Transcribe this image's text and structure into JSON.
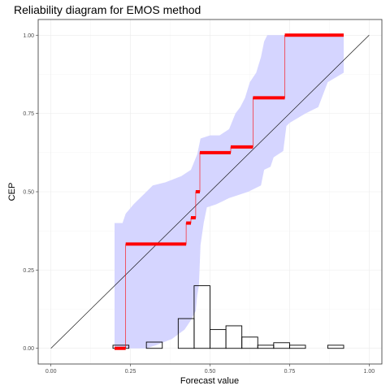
{
  "chart_data": {
    "type": "line",
    "title": "Reliability diagram for EMOS method",
    "xlabel": "Forecast value",
    "ylabel": "CEP",
    "xlim": [
      -0.04,
      1.04
    ],
    "ylim": [
      -0.05,
      1.05
    ],
    "x_ticks": [
      "0.00",
      "0.25",
      "0.50",
      "0.75",
      "1.00"
    ],
    "y_ticks": [
      "0.00",
      "0.25",
      "0.50",
      "0.75",
      "1.00"
    ],
    "grid": true,
    "colors": {
      "step": "#ff0000",
      "band": "#d5d5ff",
      "diagonal": "#000000",
      "histogram": "#000000",
      "panel_border": "#333333"
    },
    "diagonal": [
      [
        0,
        0
      ],
      [
        1,
        1
      ]
    ],
    "cep_steps": [
      {
        "x0": 0.2,
        "x1": 0.235,
        "y": 0.0
      },
      {
        "x0": 0.235,
        "x1": 0.425,
        "y": 0.333
      },
      {
        "x0": 0.425,
        "x1": 0.44,
        "y": 0.4
      },
      {
        "x0": 0.44,
        "x1": 0.455,
        "y": 0.417
      },
      {
        "x0": 0.455,
        "x1": 0.468,
        "y": 0.5
      },
      {
        "x0": 0.468,
        "x1": 0.565,
        "y": 0.625
      },
      {
        "x0": 0.565,
        "x1": 0.635,
        "y": 0.643
      },
      {
        "x0": 0.635,
        "x1": 0.735,
        "y": 0.8
      },
      {
        "x0": 0.735,
        "x1": 0.92,
        "y": 1.0
      }
    ],
    "band_upper": [
      [
        0.2,
        0.4
      ],
      [
        0.225,
        0.4
      ],
      [
        0.235,
        0.43
      ],
      [
        0.26,
        0.46
      ],
      [
        0.3,
        0.5
      ],
      [
        0.32,
        0.52
      ],
      [
        0.36,
        0.53
      ],
      [
        0.41,
        0.55
      ],
      [
        0.44,
        0.57
      ],
      [
        0.46,
        0.62
      ],
      [
        0.47,
        0.67
      ],
      [
        0.5,
        0.68
      ],
      [
        0.53,
        0.68
      ],
      [
        0.56,
        0.7
      ],
      [
        0.58,
        0.75
      ],
      [
        0.595,
        0.77
      ],
      [
        0.61,
        0.8
      ],
      [
        0.625,
        0.85
      ],
      [
        0.645,
        0.88
      ],
      [
        0.66,
        0.93
      ],
      [
        0.67,
        0.98
      ],
      [
        0.68,
        1.0
      ],
      [
        0.92,
        1.0
      ]
    ],
    "band_lower": [
      [
        0.92,
        0.88
      ],
      [
        0.87,
        0.85
      ],
      [
        0.84,
        0.77
      ],
      [
        0.8,
        0.75
      ],
      [
        0.75,
        0.72
      ],
      [
        0.74,
        0.71
      ],
      [
        0.73,
        0.63
      ],
      [
        0.7,
        0.61
      ],
      [
        0.69,
        0.58
      ],
      [
        0.67,
        0.57
      ],
      [
        0.66,
        0.52
      ],
      [
        0.64,
        0.51
      ],
      [
        0.62,
        0.5
      ],
      [
        0.59,
        0.49
      ],
      [
        0.56,
        0.48
      ],
      [
        0.54,
        0.47
      ],
      [
        0.52,
        0.46
      ],
      [
        0.49,
        0.45
      ],
      [
        0.48,
        0.4
      ],
      [
        0.47,
        0.33
      ],
      [
        0.465,
        0.2
      ],
      [
        0.46,
        0.17
      ],
      [
        0.455,
        0.12
      ],
      [
        0.44,
        0.09
      ],
      [
        0.42,
        0.06
      ],
      [
        0.38,
        0.03
      ],
      [
        0.33,
        0.01
      ],
      [
        0.3,
        0.0
      ],
      [
        0.27,
        0.0
      ],
      [
        0.2,
        0.0
      ]
    ],
    "histogram": [
      {
        "x0": 0.195,
        "x1": 0.245,
        "y": 0.01
      },
      {
        "x0": 0.3,
        "x1": 0.35,
        "y": 0.02
      },
      {
        "x0": 0.4,
        "x1": 0.45,
        "y": 0.095
      },
      {
        "x0": 0.45,
        "x1": 0.5,
        "y": 0.2
      },
      {
        "x0": 0.5,
        "x1": 0.55,
        "y": 0.06
      },
      {
        "x0": 0.55,
        "x1": 0.6,
        "y": 0.072
      },
      {
        "x0": 0.6,
        "x1": 0.65,
        "y": 0.036
      },
      {
        "x0": 0.65,
        "x1": 0.7,
        "y": 0.01
      },
      {
        "x0": 0.7,
        "x1": 0.75,
        "y": 0.018
      },
      {
        "x0": 0.75,
        "x1": 0.8,
        "y": 0.01
      },
      {
        "x0": 0.87,
        "x1": 0.92,
        "y": 0.01
      }
    ]
  }
}
